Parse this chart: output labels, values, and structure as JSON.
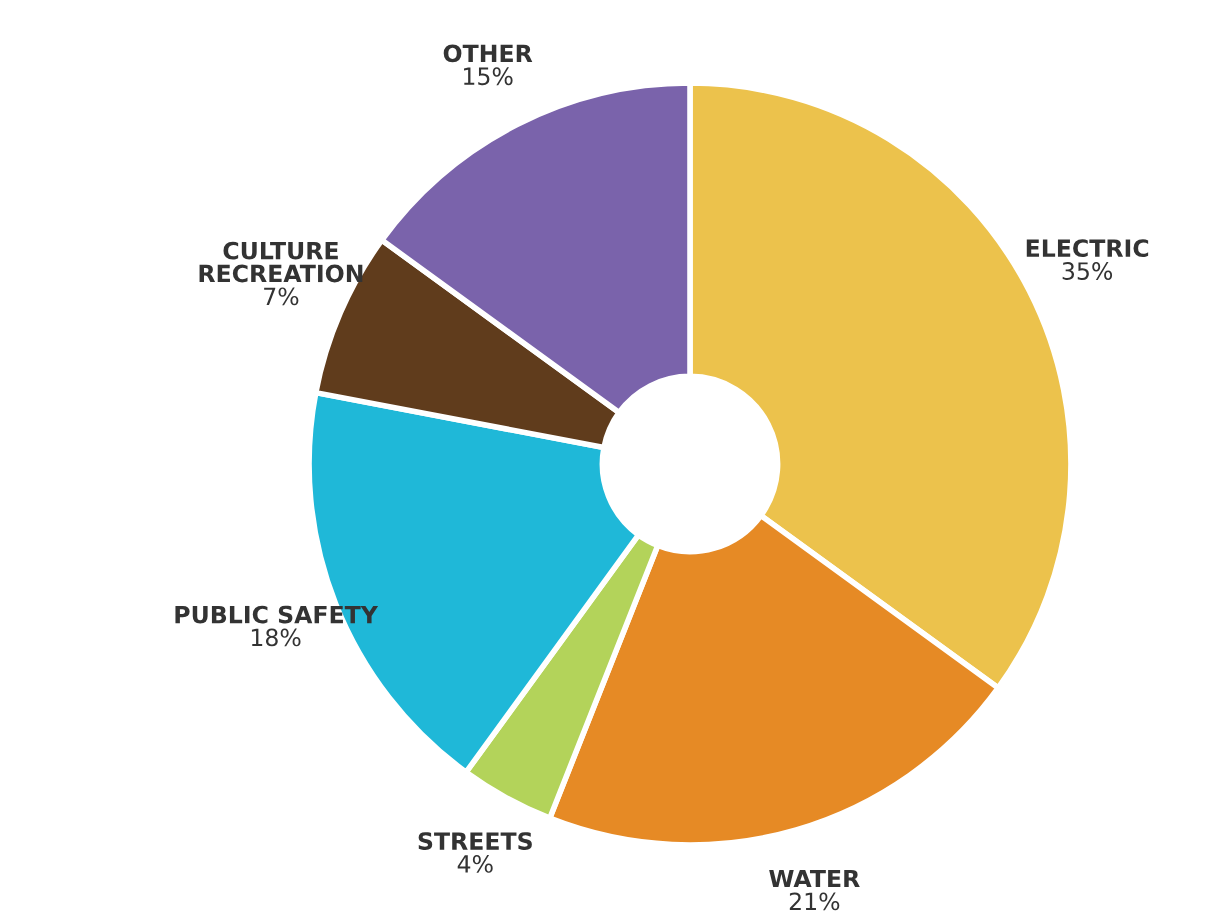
{
  "chart_data": {
    "type": "donut",
    "categories": [
      "ELECTRIC",
      "WATER",
      "STREETS",
      "PUBLIC SAFETY",
      "CULTURE\nRECREATION",
      "OTHER"
    ],
    "values": [
      35,
      21,
      4,
      18,
      7,
      15
    ],
    "colors": [
      "#ecc24c",
      "#e68a25",
      "#b3d35a",
      "#1fb8d8",
      "#603c1c",
      "#7a63ab"
    ],
    "value_labels": [
      "35%",
      "21%",
      "4%",
      "18%",
      "7%",
      "15%"
    ],
    "legend": false
  }
}
